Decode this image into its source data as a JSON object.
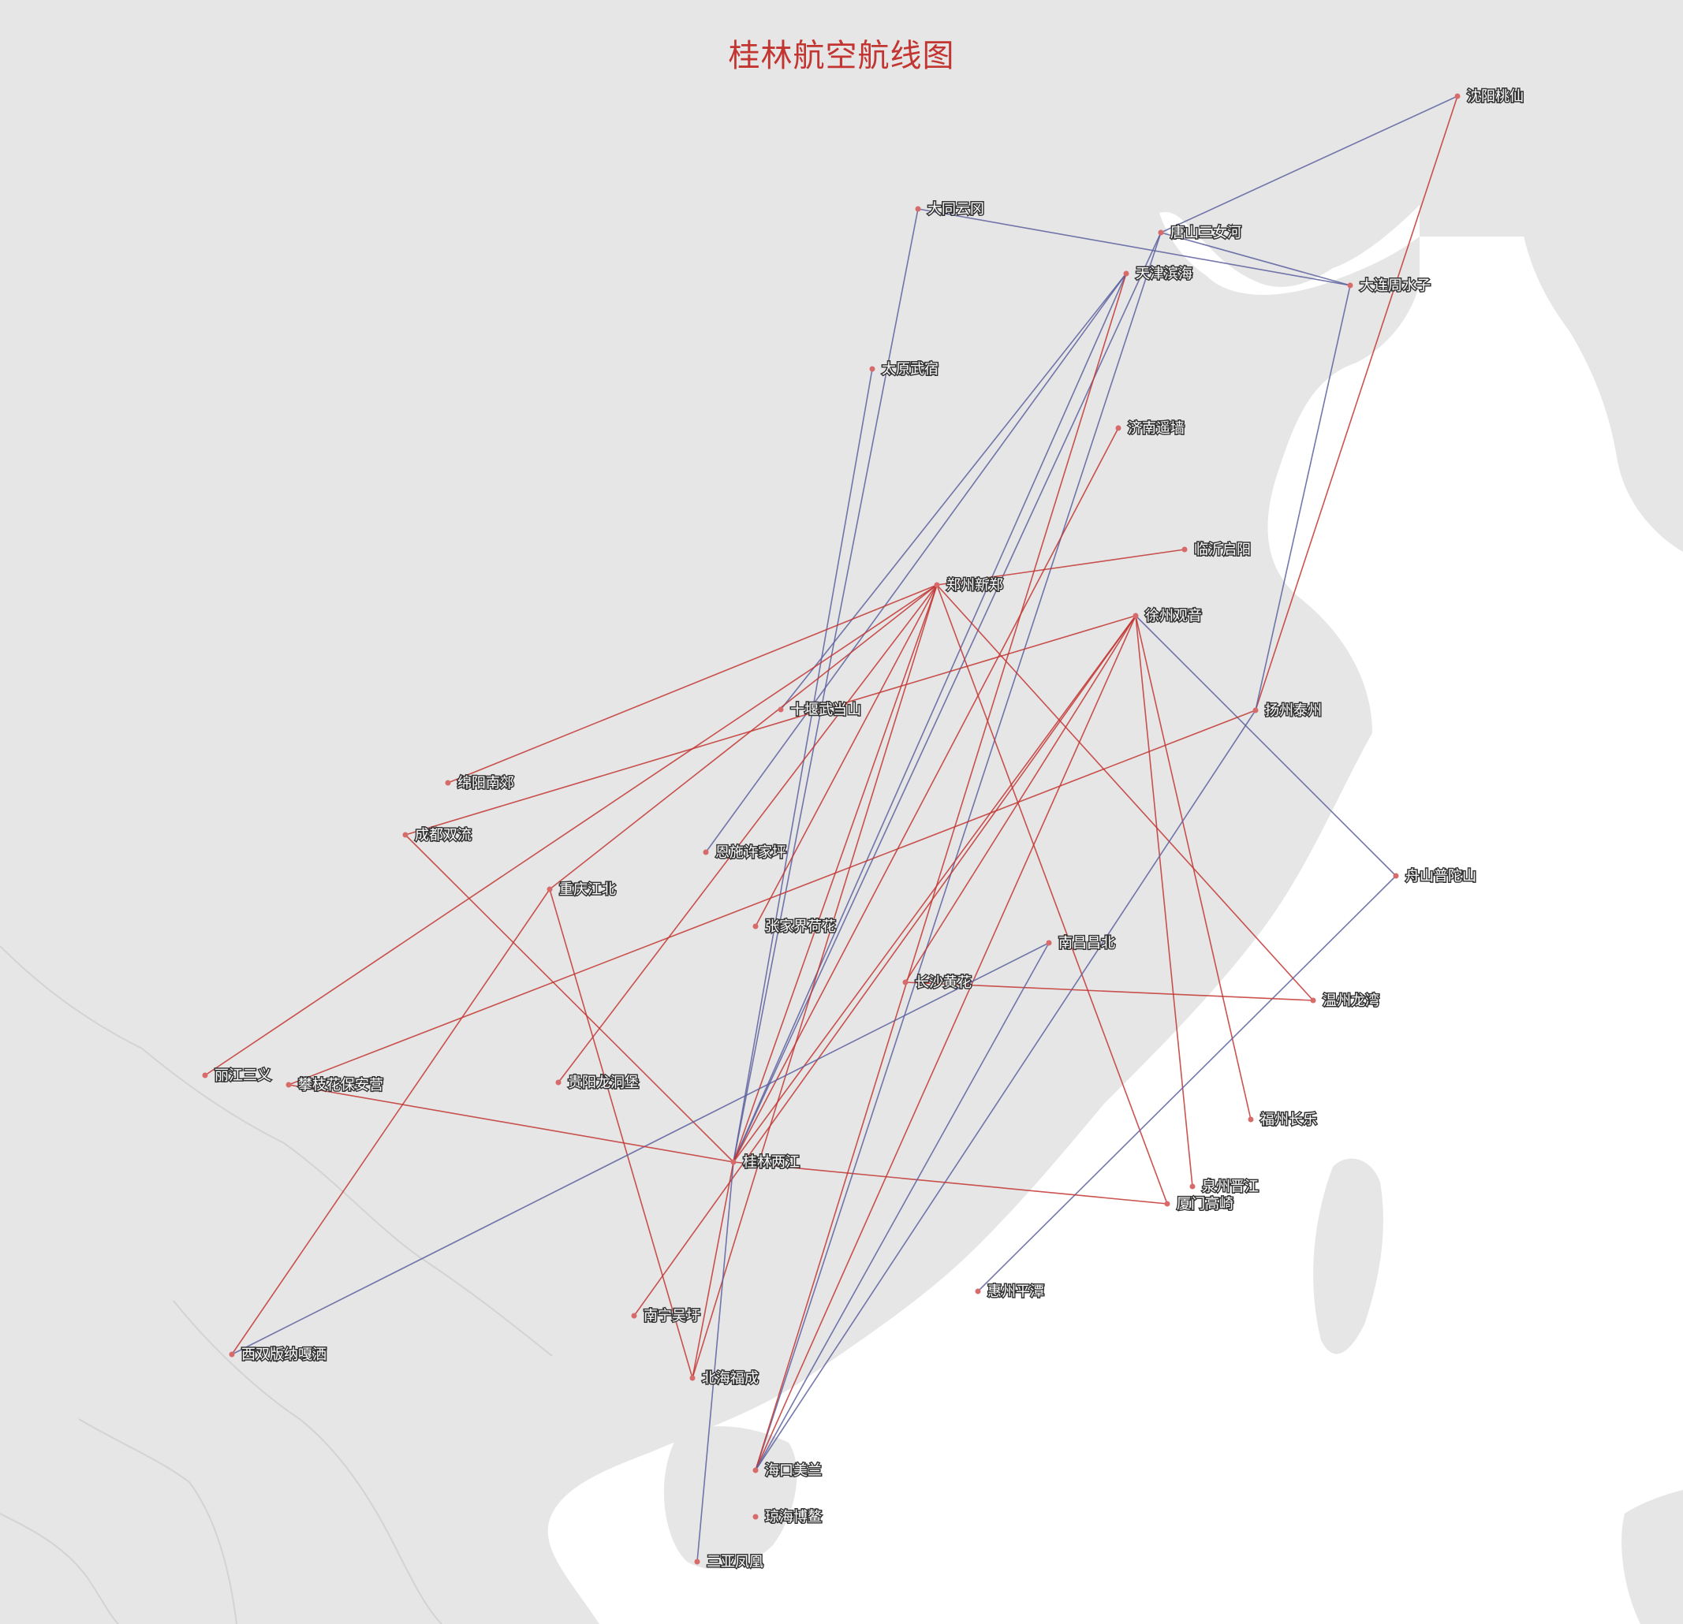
{
  "title": "桂林航空航线图",
  "colors": {
    "land": "#e6e6e6",
    "sea": "#ffffff",
    "border": "#d3d3d3",
    "route_red": "#c23531",
    "route_blue": "#5b5f9e",
    "dot": "#d86a6a",
    "title": "#c23531"
  },
  "cities": [
    {
      "name": "沈阳桃仙"
    },
    {
      "name": "大同云冈"
    },
    {
      "name": "唐山三女河"
    },
    {
      "name": "天津滨海"
    },
    {
      "name": "大连周水子"
    },
    {
      "name": "太原武宿"
    },
    {
      "name": "济南遥墙"
    },
    {
      "name": "临沂启阳"
    },
    {
      "name": "郑州新郑"
    },
    {
      "name": "徐州观音"
    },
    {
      "name": "十堰武当山"
    },
    {
      "name": "扬州泰州"
    },
    {
      "name": "绵阳南郊"
    },
    {
      "name": "成都双流"
    },
    {
      "name": "恩施许家坪"
    },
    {
      "name": "舟山普陀山"
    },
    {
      "name": "重庆江北"
    },
    {
      "name": "张家界荷花"
    },
    {
      "name": "南昌昌北"
    },
    {
      "name": "长沙黄花"
    },
    {
      "name": "温州龙湾"
    },
    {
      "name": "丽江三义"
    },
    {
      "name": "攀枝花保安营"
    },
    {
      "name": "贵阳龙洞堡"
    },
    {
      "name": "福州长乐"
    },
    {
      "name": "桂林两江"
    },
    {
      "name": "泉州晋江"
    },
    {
      "name": "厦门高崎"
    },
    {
      "name": "惠州平潭"
    },
    {
      "name": "南宁吴圩"
    },
    {
      "name": "西双版纳嘎洒"
    },
    {
      "name": "北海福成"
    },
    {
      "name": "海口美兰"
    },
    {
      "name": "琼海博鳌"
    },
    {
      "name": "三亚凤凰"
    }
  ],
  "routes": [
    {
      "from": "沈阳桃仙",
      "to": "唐山三女河",
      "color": "blue"
    },
    {
      "from": "沈阳桃仙",
      "to": "扬州泰州",
      "color": "red"
    },
    {
      "from": "大同云冈",
      "to": "大连周水子",
      "color": "blue"
    },
    {
      "from": "大同云冈",
      "to": "桂林两江",
      "color": "blue"
    },
    {
      "from": "唐山三女河",
      "to": "大连周水子",
      "color": "blue"
    },
    {
      "from": "唐山三女河",
      "to": "桂林两江",
      "color": "blue"
    },
    {
      "from": "唐山三女河",
      "to": "海口美兰",
      "color": "blue"
    },
    {
      "from": "大连周水子",
      "to": "扬州泰州",
      "color": "blue"
    },
    {
      "from": "天津滨海",
      "to": "桂林两江",
      "color": "blue"
    },
    {
      "from": "天津滨海",
      "to": "海口美兰",
      "color": "red"
    },
    {
      "from": "天津滨海",
      "to": "十堰武当山",
      "color": "blue"
    },
    {
      "from": "天津滨海",
      "to": "恩施许家坪",
      "color": "blue"
    },
    {
      "from": "太原武宿",
      "to": "桂林两江",
      "color": "blue"
    },
    {
      "from": "济南遥墙",
      "to": "桂林两江",
      "color": "red"
    },
    {
      "from": "临沂启阳",
      "to": "郑州新郑",
      "color": "red"
    },
    {
      "from": "郑州新郑",
      "to": "绵阳南郊",
      "color": "red"
    },
    {
      "from": "郑州新郑",
      "to": "丽江三义",
      "color": "red"
    },
    {
      "from": "郑州新郑",
      "to": "桂林两江",
      "color": "red"
    },
    {
      "from": "郑州新郑",
      "to": "贵阳龙洞堡",
      "color": "red"
    },
    {
      "from": "郑州新郑",
      "to": "厦门高崎",
      "color": "red"
    },
    {
      "from": "郑州新郑",
      "to": "温州龙湾",
      "color": "red"
    },
    {
      "from": "郑州新郑",
      "to": "北海福成",
      "color": "red"
    },
    {
      "from": "郑州新郑",
      "to": "重庆江北",
      "color": "red"
    },
    {
      "from": "郑州新郑",
      "to": "张家界荷花",
      "color": "red"
    },
    {
      "from": "徐州观音",
      "to": "成都双流",
      "color": "red"
    },
    {
      "from": "徐州观音",
      "to": "桂林两江",
      "color": "red"
    },
    {
      "from": "徐州观音",
      "to": "长沙黄花",
      "color": "red"
    },
    {
      "from": "徐州观音",
      "to": "海口美兰",
      "color": "red"
    },
    {
      "from": "徐州观音",
      "to": "福州长乐",
      "color": "red"
    },
    {
      "from": "徐州观音",
      "to": "泉州晋江",
      "color": "red"
    },
    {
      "from": "徐州观音",
      "to": "南宁吴圩",
      "color": "red"
    },
    {
      "from": "徐州观音",
      "to": "舟山普陀山",
      "color": "blue"
    },
    {
      "from": "扬州泰州",
      "to": "攀枝花保安营",
      "color": "red"
    },
    {
      "from": "扬州泰州",
      "to": "海口美兰",
      "color": "blue"
    },
    {
      "from": "成都双流",
      "to": "桂林两江",
      "color": "red"
    },
    {
      "from": "舟山普陀山",
      "to": "惠州平潭",
      "color": "blue"
    },
    {
      "from": "重庆江北",
      "to": "北海福成",
      "color": "red"
    },
    {
      "from": "重庆江北",
      "to": "西双版纳嘎洒",
      "color": "red"
    },
    {
      "from": "南昌昌北",
      "to": "西双版纳嘎洒",
      "color": "blue"
    },
    {
      "from": "长沙黄花",
      "to": "温州龙湾",
      "color": "red"
    },
    {
      "from": "攀枝花保安营",
      "to": "桂林两江",
      "color": "red"
    },
    {
      "from": "桂林两江",
      "to": "厦门高崎",
      "color": "red"
    },
    {
      "from": "桂林两江",
      "to": "三亚凤凰",
      "color": "blue"
    },
    {
      "from": "桂林两江",
      "to": "北海福成",
      "color": "red"
    },
    {
      "from": "南昌昌北",
      "to": "海口美兰",
      "color": "blue"
    }
  ]
}
